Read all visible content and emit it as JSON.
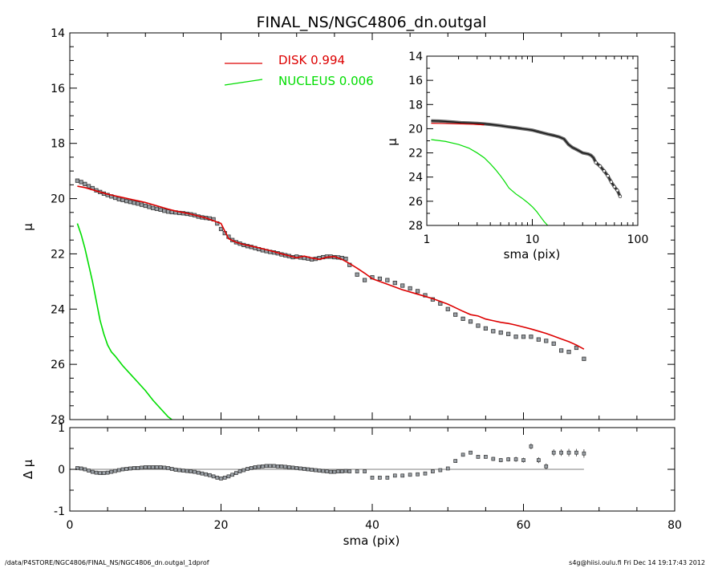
{
  "title": "FINAL_NS/NGC4806_dn.outgal",
  "footer": {
    "left": "/data/P4STORE/NGC4806/FINAL_NS/NGC4806_dn.outgal_1dprof",
    "right": "s4g@hiisi.oulu.fi  Fri Dec 14 19:17:43 2012"
  },
  "colors": {
    "disk": "#dd0000",
    "nucleus": "#00dd00",
    "data": "#000000",
    "marker_fill": "#9aa0a6"
  },
  "chart_data": [
    {
      "type": "line",
      "panel": "main",
      "xlabel": "",
      "ylabel": "μ",
      "xlim": [
        0,
        80
      ],
      "ylim": [
        28,
        14
      ],
      "yticks": [
        14,
        16,
        18,
        20,
        22,
        24,
        26,
        28
      ],
      "legend": {
        "placement": "top-center",
        "entries": [
          {
            "label": "DISK  0.994",
            "color": "#dd0000"
          },
          {
            "label": "NUCLEUS  0.006",
            "color": "#00dd00"
          }
        ]
      },
      "series": [
        {
          "label": "observed",
          "style": "markers",
          "x": [
            1.0,
            1.5,
            2.0,
            2.5,
            3.0,
            3.5,
            4.0,
            4.5,
            5.0,
            5.5,
            6.0,
            6.5,
            7.0,
            7.5,
            8.0,
            8.5,
            9.0,
            9.5,
            10.0,
            10.5,
            11.0,
            11.5,
            12.0,
            12.5,
            13.0,
            13.5,
            14.0,
            14.5,
            15.0,
            15.5,
            16.0,
            16.5,
            17.0,
            17.5,
            18.0,
            18.5,
            19.0,
            19.5,
            20.0,
            20.5,
            21.0,
            21.5,
            22.0,
            22.5,
            23.0,
            23.5,
            24.0,
            24.5,
            25.0,
            25.5,
            26.0,
            26.5,
            27.0,
            27.5,
            28.0,
            28.5,
            29.0,
            29.5,
            30.0,
            30.5,
            31.0,
            31.5,
            32.0,
            32.5,
            33.0,
            33.5,
            34.0,
            34.5,
            35.0,
            35.5,
            36.0,
            36.5,
            37.0,
            38.0,
            39.0,
            40.0,
            41.0,
            42.0,
            43.0,
            44.0,
            45.0,
            46.0,
            47.0,
            48.0,
            49.0,
            50.0,
            51.0,
            52.0,
            53.0,
            54.0,
            55.0,
            56.0,
            57.0,
            58.0,
            59.0,
            60.0,
            61.0,
            62.0,
            63.0,
            64.0,
            65.0,
            66.0,
            67.0,
            68.0
          ],
          "y": [
            19.35,
            19.4,
            19.47,
            19.55,
            19.62,
            19.7,
            19.76,
            19.82,
            19.87,
            19.92,
            19.97,
            20.02,
            20.05,
            20.09,
            20.12,
            20.15,
            20.18,
            20.22,
            20.26,
            20.3,
            20.34,
            20.37,
            20.4,
            20.44,
            20.47,
            20.49,
            20.5,
            20.52,
            20.53,
            20.55,
            20.57,
            20.6,
            20.65,
            20.68,
            20.7,
            20.72,
            20.75,
            20.9,
            21.1,
            21.25,
            21.38,
            21.5,
            21.58,
            21.63,
            21.68,
            21.72,
            21.75,
            21.79,
            21.83,
            21.87,
            21.9,
            21.93,
            21.95,
            21.98,
            22.02,
            22.05,
            22.08,
            22.12,
            22.1,
            22.13,
            22.15,
            22.17,
            22.2,
            22.18,
            22.15,
            22.12,
            22.1,
            22.1,
            22.12,
            22.13,
            22.15,
            22.18,
            22.4,
            22.75,
            22.95,
            22.85,
            22.9,
            22.95,
            23.05,
            23.15,
            23.25,
            23.35,
            23.5,
            23.65,
            23.8,
            24.0,
            24.2,
            24.35,
            24.45,
            24.6,
            24.7,
            24.8,
            24.85,
            24.9,
            25.0,
            25.0,
            25.0,
            25.1,
            25.15,
            25.25,
            25.5,
            25.55,
            25.4,
            25.8
          ]
        },
        {
          "label": "DISK  0.994",
          "style": "line",
          "color": "#dd0000",
          "x": [
            1,
            2,
            3,
            4,
            5,
            6,
            7,
            8,
            9,
            10,
            11,
            12,
            13,
            14,
            15,
            16,
            17,
            18,
            19,
            20,
            21,
            22,
            23,
            24,
            25,
            26,
            27,
            28,
            29,
            30,
            31,
            32,
            33,
            34,
            35,
            36,
            37,
            38,
            39,
            40,
            41,
            42,
            43,
            44,
            45,
            46,
            47,
            48,
            49,
            50,
            51,
            52,
            53,
            54,
            55,
            56,
            57,
            58,
            59,
            60,
            61,
            62,
            63,
            64,
            65,
            66,
            67,
            68
          ],
          "y": [
            19.55,
            19.6,
            19.68,
            19.76,
            19.84,
            19.9,
            19.96,
            20.02,
            20.08,
            20.14,
            20.22,
            20.3,
            20.38,
            20.45,
            20.5,
            20.56,
            20.63,
            20.7,
            20.8,
            20.9,
            21.45,
            21.58,
            21.66,
            21.72,
            21.78,
            21.85,
            21.92,
            22.0,
            22.07,
            22.14,
            22.08,
            22.15,
            22.2,
            22.12,
            22.1,
            22.2,
            22.35,
            22.52,
            22.7,
            22.9,
            23.0,
            23.1,
            23.2,
            23.3,
            23.38,
            23.46,
            23.54,
            23.62,
            23.72,
            23.82,
            23.95,
            24.08,
            24.2,
            24.25,
            24.36,
            24.42,
            24.48,
            24.52,
            24.58,
            24.65,
            24.72,
            24.8,
            24.88,
            24.98,
            25.08,
            25.18,
            25.3,
            25.45
          ]
        },
        {
          "label": "NUCLEUS  0.006",
          "style": "line",
          "color": "#00dd00",
          "x": [
            1,
            1.5,
            2,
            2.5,
            3,
            3.5,
            4,
            4.5,
            5,
            5.5,
            6,
            7,
            8,
            9,
            10,
            11,
            12,
            13,
            13.5
          ],
          "y": [
            20.9,
            21.3,
            21.8,
            22.4,
            23.0,
            23.7,
            24.4,
            24.9,
            25.3,
            25.55,
            25.7,
            26.05,
            26.35,
            26.65,
            26.95,
            27.3,
            27.6,
            27.9,
            28.0
          ]
        }
      ]
    },
    {
      "type": "scatter",
      "panel": "residual",
      "xlabel": "sma (pix)",
      "ylabel": "Δ μ",
      "xlim": [
        0,
        80
      ],
      "ylim": [
        -1,
        1
      ],
      "xticks": [
        0,
        20,
        40,
        60,
        80
      ],
      "yticks": [
        1,
        0,
        -1
      ],
      "reference_line": 0,
      "series": [
        {
          "label": "residual",
          "x": [
            1.0,
            1.5,
            2.0,
            2.5,
            3.0,
            3.5,
            4.0,
            4.5,
            5.0,
            5.5,
            6.0,
            6.5,
            7.0,
            7.5,
            8.0,
            8.5,
            9.0,
            9.5,
            10.0,
            10.5,
            11.0,
            11.5,
            12.0,
            12.5,
            13.0,
            13.5,
            14.0,
            14.5,
            15.0,
            15.5,
            16.0,
            16.5,
            17.0,
            17.5,
            18.0,
            18.5,
            19.0,
            19.5,
            20.0,
            20.5,
            21.0,
            21.5,
            22.0,
            22.5,
            23.0,
            23.5,
            24.0,
            24.5,
            25.0,
            25.5,
            26.0,
            26.5,
            27.0,
            27.5,
            28.0,
            28.5,
            29.0,
            29.5,
            30.0,
            30.5,
            31.0,
            31.5,
            32.0,
            32.5,
            33.0,
            33.5,
            34.0,
            34.5,
            35.0,
            35.5,
            36.0,
            36.5,
            37.0,
            38.0,
            39.0,
            40.0,
            41.0,
            42.0,
            43.0,
            44.0,
            45.0,
            46.0,
            47.0,
            48.0,
            49.0,
            50.0,
            51.0,
            52.0,
            53.0,
            54.0,
            55.0,
            56.0,
            57.0,
            58.0,
            59.0,
            60.0,
            61.0,
            62.0,
            63.0,
            64.0,
            65.0,
            66.0,
            67.0,
            68.0
          ],
          "y": [
            0.03,
            0.02,
            0.0,
            -0.03,
            -0.06,
            -0.08,
            -0.09,
            -0.09,
            -0.08,
            -0.06,
            -0.04,
            -0.02,
            0.0,
            0.01,
            0.02,
            0.03,
            0.03,
            0.04,
            0.05,
            0.05,
            0.05,
            0.05,
            0.05,
            0.04,
            0.03,
            0.01,
            -0.01,
            -0.02,
            -0.03,
            -0.04,
            -0.05,
            -0.06,
            -0.08,
            -0.1,
            -0.12,
            -0.14,
            -0.17,
            -0.2,
            -0.22,
            -0.2,
            -0.17,
            -0.13,
            -0.09,
            -0.05,
            -0.02,
            0.01,
            0.03,
            0.05,
            0.06,
            0.07,
            0.08,
            0.08,
            0.08,
            0.07,
            0.07,
            0.06,
            0.05,
            0.04,
            0.03,
            0.02,
            0.01,
            0.0,
            -0.01,
            -0.02,
            -0.03,
            -0.04,
            -0.05,
            -0.06,
            -0.06,
            -0.05,
            -0.05,
            -0.04,
            -0.05,
            -0.05,
            -0.05,
            -0.2,
            -0.2,
            -0.2,
            -0.15,
            -0.15,
            -0.13,
            -0.12,
            -0.1,
            -0.05,
            -0.02,
            0.02,
            0.2,
            0.35,
            0.4,
            0.3,
            0.3,
            0.25,
            0.22,
            0.24,
            0.24,
            0.22,
            0.55,
            0.22,
            0.07,
            0.4,
            0.4,
            0.4,
            0.4,
            0.38
          ],
          "errors": [
            0,
            0,
            0,
            0,
            0,
            0,
            0,
            0,
            0,
            0,
            0,
            0,
            0,
            0,
            0,
            0,
            0,
            0,
            0,
            0,
            0,
            0,
            0,
            0,
            0,
            0,
            0,
            0,
            0,
            0,
            0,
            0,
            0,
            0,
            0,
            0,
            0,
            0,
            0,
            0,
            0,
            0,
            0,
            0,
            0,
            0,
            0,
            0,
            0,
            0,
            0,
            0,
            0,
            0,
            0,
            0,
            0,
            0,
            0,
            0,
            0,
            0,
            0,
            0,
            0,
            0,
            0,
            0,
            0,
            0,
            0,
            0,
            0,
            0,
            0,
            0,
            0,
            0,
            0,
            0,
            0,
            0,
            0,
            0,
            0,
            0,
            0,
            0,
            0,
            0,
            0,
            0.05,
            0.05,
            0.05,
            0.06,
            0.06,
            0.07,
            0.07,
            0.07,
            0.08,
            0.08,
            0.09,
            0.09,
            0.1
          ]
        }
      ]
    },
    {
      "type": "line",
      "panel": "inset",
      "xlabel": "sma (pix)",
      "ylabel": "μ",
      "xscale": "log",
      "xlim": [
        1,
        100
      ],
      "ylim": [
        28,
        14
      ],
      "xticks": [
        1,
        10,
        100
      ],
      "yticks": [
        14,
        16,
        18,
        20,
        22,
        24,
        26,
        28
      ],
      "series": [
        {
          "label": "observed",
          "style": "markers",
          "x": [
            1.1,
            1.3,
            1.5,
            1.8,
            2.1,
            2.5,
            3.0,
            3.5,
            4.0,
            5.0,
            6.0,
            7.0,
            8.0,
            9.0,
            10.0,
            12.0,
            14.0,
            16.0,
            18.0,
            20.0,
            22.0,
            24.0,
            26.0,
            28.0,
            30.0,
            32.0,
            34.0,
            36.0,
            38.0,
            40.0,
            44.0,
            48.0,
            52.0,
            56.0,
            60.0,
            64.0,
            68.0
          ],
          "y": [
            19.35,
            19.37,
            19.4,
            19.45,
            19.5,
            19.52,
            19.56,
            19.6,
            19.65,
            19.75,
            19.85,
            19.92,
            20.0,
            20.06,
            20.12,
            20.3,
            20.45,
            20.56,
            20.68,
            20.85,
            21.3,
            21.55,
            21.7,
            21.85,
            22.0,
            22.05,
            22.1,
            22.2,
            22.4,
            22.8,
            23.1,
            23.5,
            23.9,
            24.4,
            24.8,
            25.1,
            25.6
          ]
        },
        {
          "label": "DISK  0.994",
          "style": "line",
          "color": "#dd0000",
          "x": [
            1.1,
            1.5,
            2.0,
            2.5,
            3.0,
            3.5
          ],
          "y": [
            19.55,
            19.57,
            19.6,
            19.62,
            19.65,
            19.68
          ]
        },
        {
          "label": "NUCLEUS  0.006",
          "style": "line",
          "color": "#00dd00",
          "x": [
            1.1,
            1.5,
            2.0,
            2.5,
            3.0,
            3.5,
            4.0,
            4.5,
            5.0,
            5.5,
            6.0,
            7.0,
            8.0,
            9.0,
            10.0,
            11.0,
            12.0,
            13.0,
            14.0
          ],
          "y": [
            20.9,
            21.05,
            21.3,
            21.6,
            22.0,
            22.4,
            22.9,
            23.4,
            23.9,
            24.4,
            24.9,
            25.4,
            25.75,
            26.1,
            26.45,
            26.85,
            27.3,
            27.7,
            28.0
          ]
        }
      ]
    }
  ]
}
